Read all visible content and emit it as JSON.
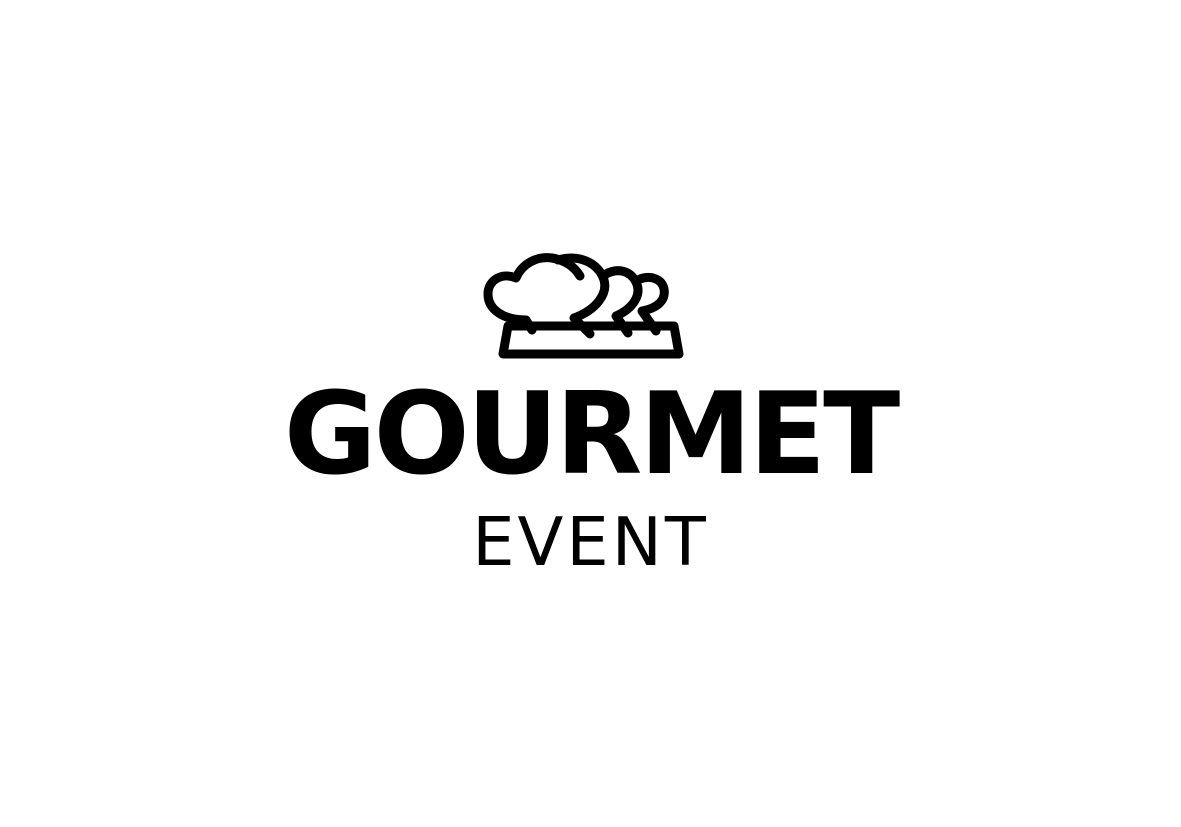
{
  "logo": {
    "icon": "chef-hats-icon",
    "title": "GOURMET",
    "subtitle": "EVENT",
    "color": "#000000",
    "background": "#ffffff"
  }
}
